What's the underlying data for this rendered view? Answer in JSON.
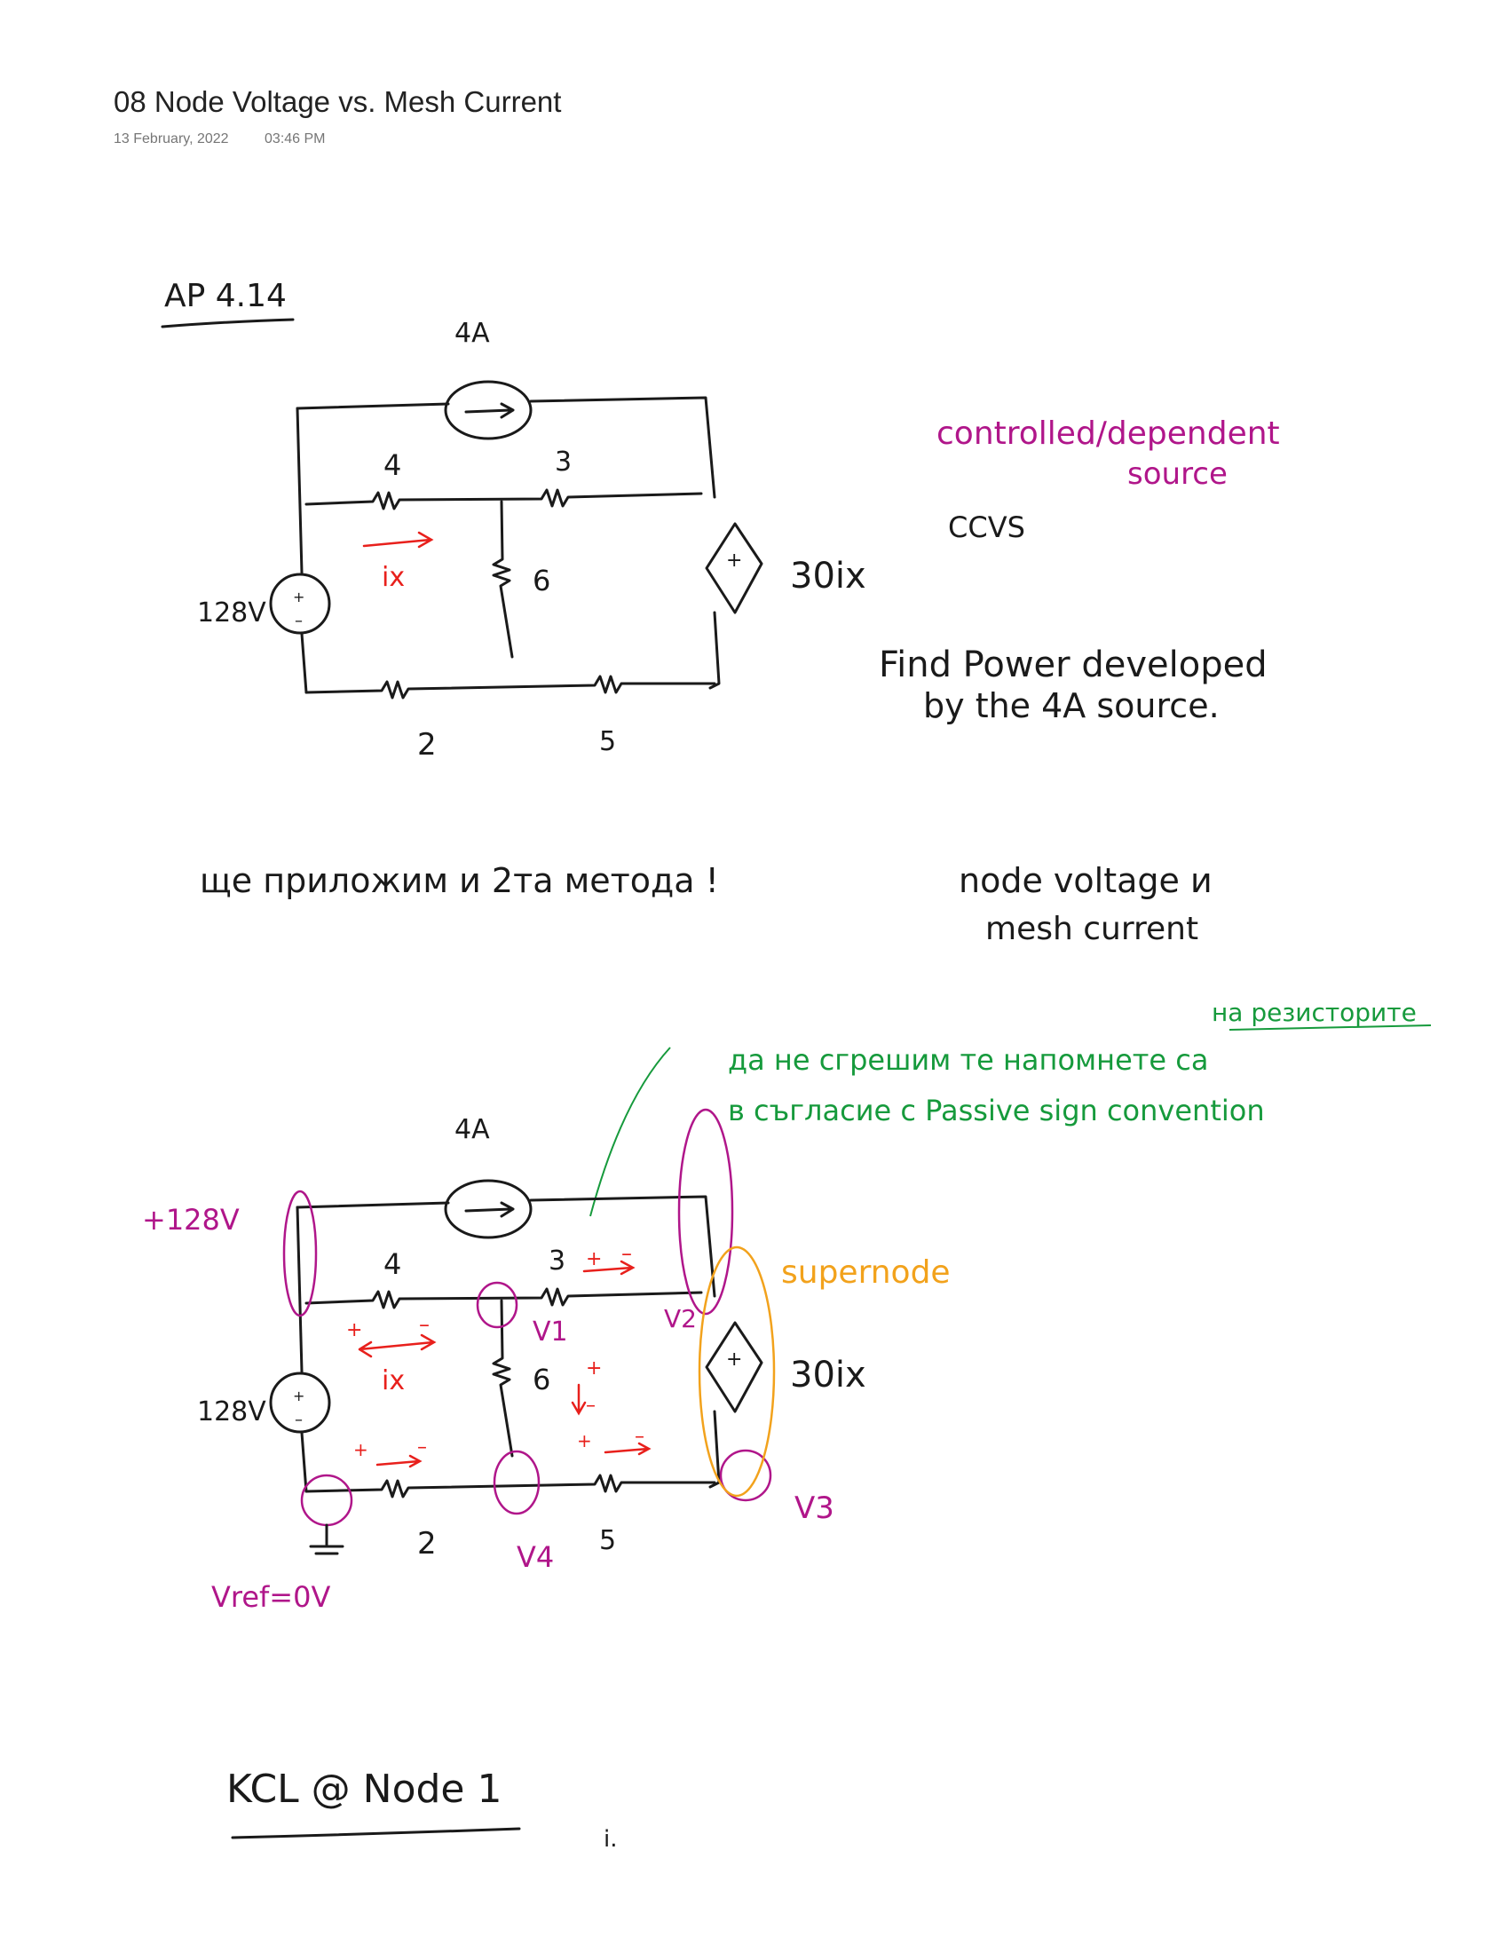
{
  "page": {
    "title": "08 Node Voltage vs. Mesh Current",
    "date": "13 February, 2022",
    "time": "03:46 PM"
  },
  "problem": {
    "label": "AP 4.14",
    "source_current": "4A",
    "r_top_left": "4",
    "r_top_right": "3",
    "r_middle": "6",
    "r_bottom_left": "2",
    "r_bottom_right": "5",
    "voltage_source": "128V",
    "dependent_source": "30ix",
    "current_label": "ix"
  },
  "notes": {
    "controlled": "controlled/dependent",
    "source": "source",
    "ccvs": "CCVS",
    "find_line1": "Find Power developed",
    "find_line2": "by the 4A source.",
    "bulgarian_line": "ще приложим и 2та метода !",
    "methods_line1": "node voltage и",
    "methods_line2": "mesh current"
  },
  "annotated": {
    "plus_128v": "+128V",
    "v1": "V1",
    "v2": "V2",
    "v3": "V3",
    "v4": "V4",
    "vref": "Vref=0V",
    "supernode": "supernode",
    "green_line1": "да не сгрешим те напомнете са",
    "green_line2": "в съгласие с Passive sign convention",
    "green_top": "на резисторите",
    "plus": "+",
    "minus": "–"
  },
  "kcl": {
    "label": "KCL @ Node 1",
    "trailing": "i."
  }
}
